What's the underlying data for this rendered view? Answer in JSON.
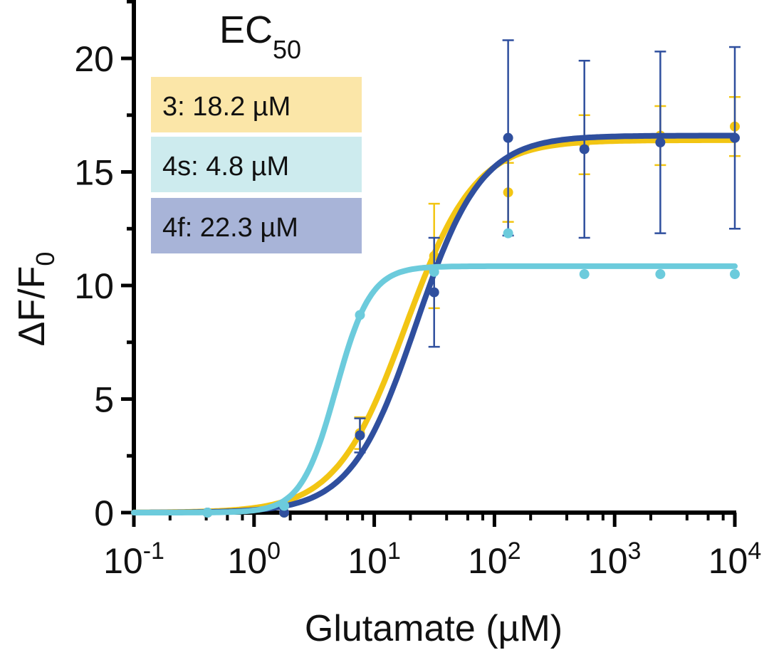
{
  "chart_data": {
    "type": "line",
    "title": "EC",
    "title_subscript": "50",
    "xlabel": "Glutamate (µM)",
    "ylabel": "ΔF/F",
    "ylabel_subscript": "0",
    "x_scale": "log",
    "xlim": [
      0.1,
      10000
    ],
    "ylim": [
      0,
      22
    ],
    "x_ticks": [
      {
        "value": 0.1,
        "base": "10",
        "exp": "-1"
      },
      {
        "value": 1,
        "base": "10",
        "exp": "0"
      },
      {
        "value": 10,
        "base": "10",
        "exp": "1"
      },
      {
        "value": 100,
        "base": "10",
        "exp": "2"
      },
      {
        "value": 1000,
        "base": "10",
        "exp": "3"
      },
      {
        "value": 10000,
        "base": "10",
        "exp": "4"
      }
    ],
    "y_ticks": [
      {
        "value": 0,
        "label": "0"
      },
      {
        "value": 5,
        "label": "5"
      },
      {
        "value": 10,
        "label": "10"
      },
      {
        "value": 15,
        "label": "15"
      },
      {
        "value": 20,
        "label": "20"
      }
    ],
    "legend": [
      {
        "label": "3: 18.2 µM",
        "color": "#fbe6a8"
      },
      {
        "label": "4s: 4.8 µM",
        "color": "#cdebee"
      },
      {
        "label": "4f: 22.3 µM",
        "color": "#a8b4d8"
      }
    ],
    "x": [
      0.41,
      1.78,
      7.6,
      31.5,
      130,
      560,
      2400,
      10000
    ],
    "series": [
      {
        "name": "3",
        "color": "#f2c513",
        "values": [
          0,
          0,
          3.5,
          11.3,
          14.1,
          16.2,
          16.6,
          17.0
        ],
        "errors": [
          0,
          0,
          0.7,
          2.3,
          1.3,
          1.3,
          1.3,
          1.3
        ],
        "fit": {
          "bottom": 0,
          "top": 16.4,
          "ec50": 18.2,
          "hill": 1.5
        }
      },
      {
        "name": "4s",
        "color": "#6ccbdc",
        "values": [
          0,
          0.3,
          8.7,
          10.6,
          12.3,
          10.5,
          10.5,
          10.5
        ],
        "errors": [
          0,
          0,
          0,
          0,
          0,
          0,
          0,
          0
        ],
        "fit": {
          "bottom": 0,
          "top": 10.85,
          "ec50": 4.8,
          "hill": 3.0
        }
      },
      {
        "name": "4f",
        "color": "#2f4f9e",
        "values": [
          0,
          0,
          3.4,
          9.7,
          16.5,
          16.0,
          16.3,
          16.5
        ],
        "errors": [
          0,
          0,
          0.75,
          2.4,
          4.3,
          3.9,
          4.0,
          4.0
        ],
        "fit": {
          "bottom": 0,
          "top": 16.6,
          "ec50": 22.3,
          "hill": 1.6
        }
      }
    ]
  }
}
